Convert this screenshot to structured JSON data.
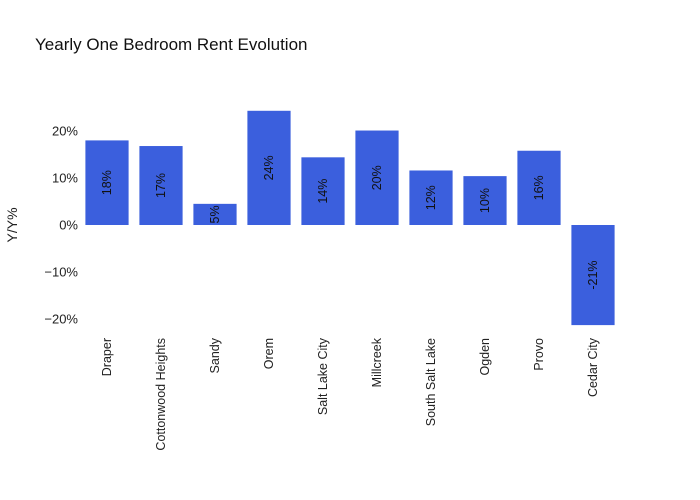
{
  "chart_data": {
    "type": "bar",
    "title": "Yearly One Bedroom Rent Evolution",
    "xlabel": "",
    "ylabel": "Y/Y%",
    "categories": [
      "Draper",
      "Cottonwood Heights",
      "Sandy",
      "Orem",
      "Salt Lake City",
      "Millcreek",
      "South Salt Lake",
      "Ogden",
      "Provo",
      "Cedar City"
    ],
    "values": [
      18,
      16.8,
      4.5,
      24.3,
      14.4,
      20.1,
      11.6,
      10.4,
      15.8,
      -21.3
    ],
    "data_labels": [
      "18%",
      "17%",
      "5%",
      "24%",
      "14%",
      "20%",
      "12%",
      "10%",
      "16%",
      "-21%"
    ],
    "yticks": [
      20,
      10,
      0,
      -10,
      -20
    ],
    "ytick_labels": [
      "20%",
      "10%",
      "0%",
      "−10%",
      "−20%"
    ],
    "ylim": [
      -23.5,
      28
    ],
    "grid": false,
    "colors": {
      "bar": "#3b5fdd",
      "text": "#222222",
      "background": "#ffffff"
    }
  }
}
